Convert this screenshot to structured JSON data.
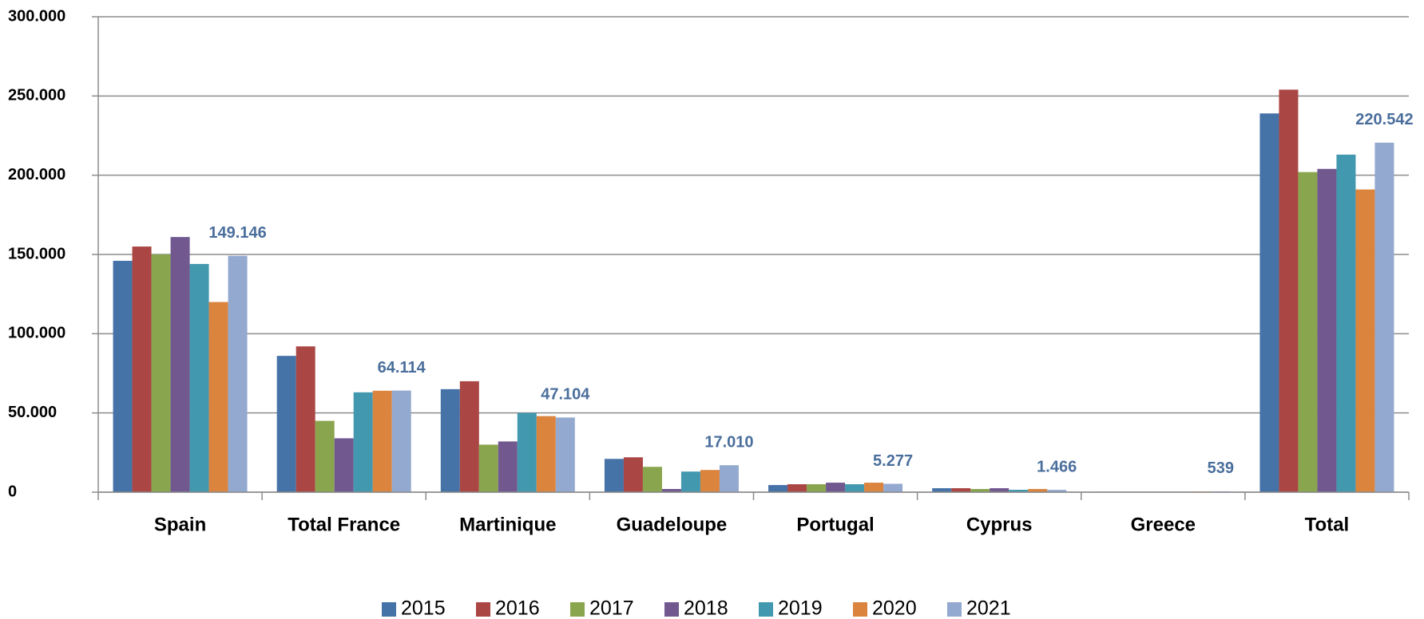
{
  "chart_data": {
    "type": "bar",
    "categories": [
      "Spain",
      "Total France",
      "Martinique",
      "Guadeloupe",
      "Portugal",
      "Cyprus",
      "Greece",
      "Total"
    ],
    "series": [
      {
        "name": "2015",
        "color": "#4572a7",
        "values": [
          146000,
          86000,
          65000,
          21000,
          4500,
          2500,
          300,
          239000
        ]
      },
      {
        "name": "2016",
        "color": "#aa4643",
        "values": [
          155000,
          92000,
          70000,
          22000,
          5000,
          2500,
          300,
          254000
        ]
      },
      {
        "name": "2017",
        "color": "#89a54e",
        "values": [
          150000,
          45000,
          30000,
          16000,
          5000,
          2000,
          300,
          202000
        ]
      },
      {
        "name": "2018",
        "color": "#71588f",
        "values": [
          161000,
          34000,
          32000,
          2000,
          6000,
          2500,
          300,
          204000
        ]
      },
      {
        "name": "2019",
        "color": "#4198af",
        "values": [
          144000,
          63000,
          50000,
          13000,
          5000,
          1500,
          300,
          213000
        ]
      },
      {
        "name": "2020",
        "color": "#db843d",
        "values": [
          120000,
          64000,
          48000,
          14000,
          6000,
          2000,
          400,
          191000
        ]
      },
      {
        "name": "2021",
        "color": "#93a9cf",
        "values": [
          149146,
          64114,
          47104,
          17010,
          5277,
          1466,
          539,
          220542
        ],
        "value_labels": [
          "149.146",
          "64.114",
          "47.104",
          "17.010",
          "5.277",
          "1.466",
          "539",
          "220.542"
        ]
      }
    ],
    "ylim": [
      0,
      300000
    ],
    "yticks": [
      0,
      {
        "value": 50000,
        "label": "50.000"
      },
      {
        "value": 100000,
        "label": "100.000"
      },
      {
        "value": 150000,
        "label": "150.000"
      },
      {
        "value": 200000,
        "label": "200.000"
      },
      {
        "value": 250000,
        "label": "250.000"
      },
      {
        "value": 300000,
        "label": "300.000"
      }
    ],
    "grid": true,
    "legend": "bottom"
  }
}
